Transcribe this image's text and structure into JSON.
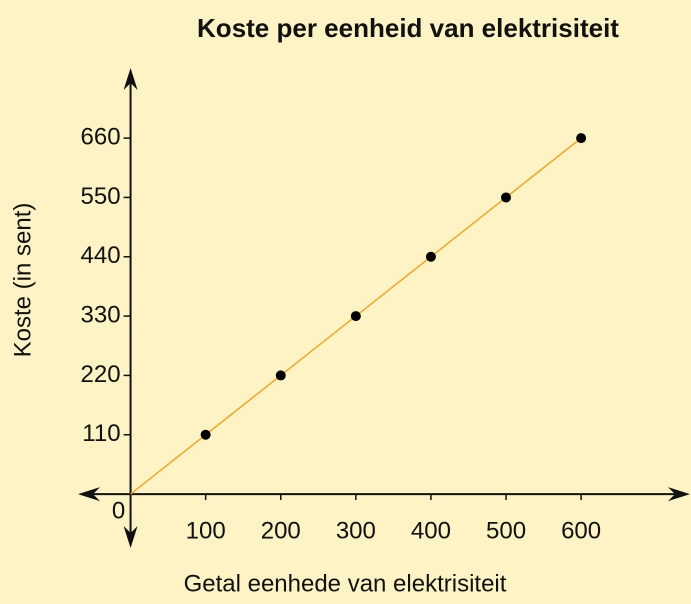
{
  "chart_data": {
    "type": "scatter",
    "title": "Koste per eenheid van elektrisiteit",
    "x_label": "Getal eenhede van elektrisiteit",
    "y_label": "Koste (in sent)",
    "x": [
      100,
      200,
      300,
      400,
      500,
      600
    ],
    "values": [
      110,
      220,
      330,
      440,
      550,
      660
    ],
    "color": "#000000",
    "line_color": "#f5a623",
    "xlim": [
      -70,
      745
    ],
    "ylim": [
      -100,
      790
    ],
    "xticks": [
      0,
      100,
      200,
      300,
      400,
      500,
      600
    ],
    "yticks": [
      110,
      220,
      330,
      440,
      550,
      660
    ]
  }
}
